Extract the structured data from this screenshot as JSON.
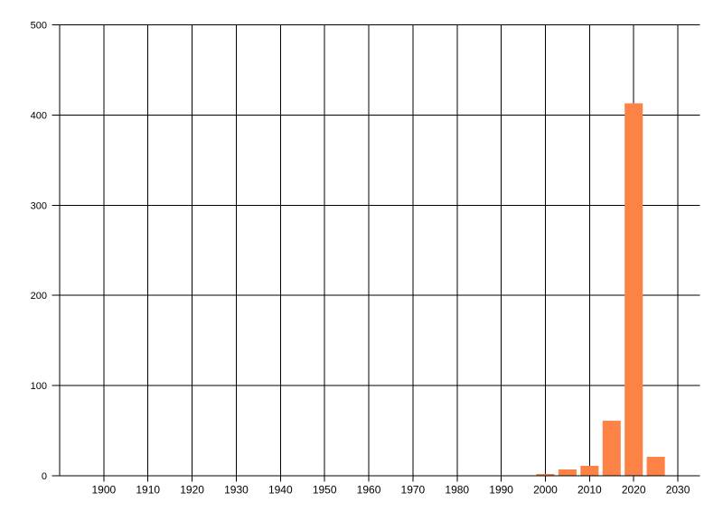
{
  "chart_data": {
    "type": "bar",
    "title": "",
    "xlabel": "",
    "ylabel": "",
    "x": [
      2000,
      2005,
      2010,
      2015,
      2020,
      2025
    ],
    "values": [
      2,
      7,
      11,
      61,
      413,
      21
    ],
    "xlim": [
      1890,
      2035
    ],
    "ylim": [
      0,
      500
    ],
    "x_ticks": [
      1900,
      1910,
      1920,
      1930,
      1940,
      1950,
      1960,
      1970,
      1980,
      1990,
      2000,
      2010,
      2020,
      2030
    ],
    "y_ticks": [
      0,
      100,
      200,
      300,
      400,
      500
    ],
    "bar_width_years": 4.1,
    "bar_color": "#fc8246",
    "gridline_color": "#000000",
    "axis_color": "#000000",
    "tick_label_color": "#000000",
    "background": "#ffffff",
    "grid": true,
    "legend": null
  }
}
